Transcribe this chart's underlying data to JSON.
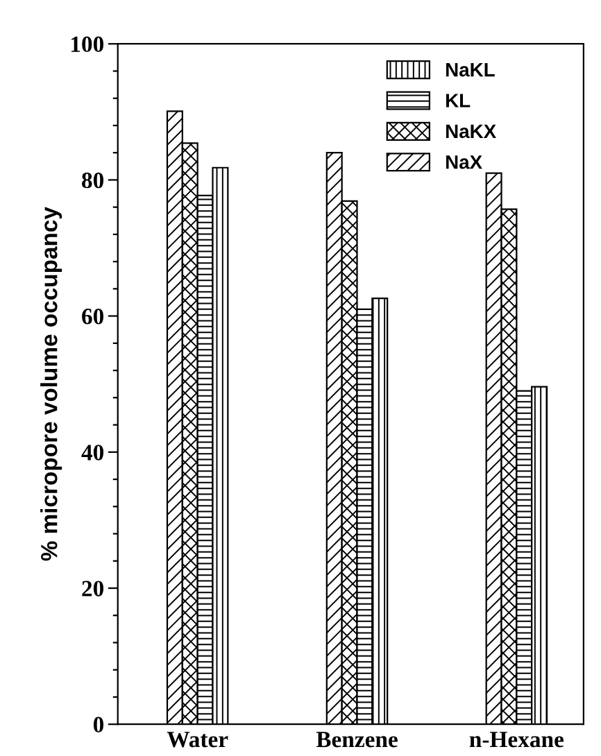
{
  "chart_data": {
    "type": "bar",
    "ylabel": "% micropore volume occupancy",
    "categories": [
      "Water",
      "Benzene",
      "n-Hexane"
    ],
    "series": [
      {
        "name": "NaX",
        "color": "#000000",
        "values": [
          90.1,
          84,
          81
        ]
      },
      {
        "name": "NaKX",
        "color": "#000000",
        "values": [
          85.4,
          76.9,
          75.7
        ]
      },
      {
        "name": "KL",
        "color": "#000000",
        "values": [
          77.7,
          61,
          49
        ]
      },
      {
        "name": "NaKL",
        "color": "#000000",
        "values": [
          81.8,
          62.6,
          49.6
        ]
      }
    ],
    "ylim": [
      0,
      100
    ],
    "yticks": [
      0,
      {
        "value": 4,
        "label": null
      },
      {
        "value": 8,
        "label": null
      },
      {
        "value": 12,
        "label": null
      },
      {
        "value": 16,
        "label": null
      },
      20,
      {
        "value": 24,
        "label": null
      },
      {
        "value": 28,
        "label": null
      },
      {
        "value": 32,
        "label": null
      },
      {
        "value": 36,
        "label": null
      },
      40,
      {
        "value": 44,
        "label": null
      },
      {
        "value": 48,
        "label": null
      },
      {
        "value": 52,
        "label": null
      },
      {
        "value": 56,
        "label": null
      },
      60,
      {
        "value": 64,
        "label": null
      },
      {
        "value": 68,
        "label": null
      },
      {
        "value": 72,
        "label": null
      },
      {
        "value": 76,
        "label": null
      },
      80,
      {
        "value": 84,
        "label": null
      },
      {
        "value": 88,
        "label": null
      },
      {
        "value": 92,
        "label": null
      },
      {
        "value": 96,
        "label": null
      },
      100
    ],
    "grid": false,
    "legend": "top right"
  }
}
